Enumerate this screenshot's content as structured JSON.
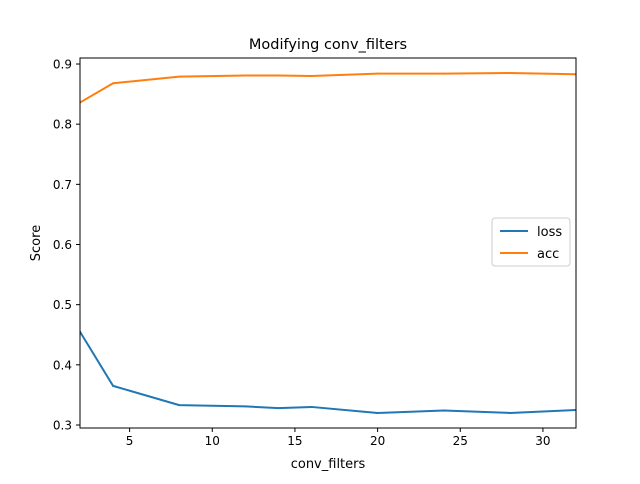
{
  "chart_data": {
    "type": "line",
    "title": "Modifying conv_filters",
    "xlabel": "conv_filters",
    "ylabel": "Score",
    "xlim": [
      2,
      32
    ],
    "ylim": [
      0.295,
      0.91
    ],
    "xticks": [
      5,
      10,
      15,
      20,
      25,
      30
    ],
    "yticks": [
      0.3,
      0.4,
      0.5,
      0.6,
      0.7,
      0.8,
      0.9
    ],
    "xtick_labels": [
      "5",
      "10",
      "15",
      "20",
      "25",
      "30"
    ],
    "ytick_labels": [
      "0.3",
      "0.4",
      "0.5",
      "0.6",
      "0.7",
      "0.8",
      "0.9"
    ],
    "grid": false,
    "legend_position": "center-right",
    "x": [
      2,
      4,
      8,
      12,
      14,
      16,
      20,
      24,
      28,
      32
    ],
    "series": [
      {
        "name": "loss",
        "color": "#1f77b4",
        "values": [
          0.455,
          0.365,
          0.333,
          0.331,
          0.328,
          0.33,
          0.32,
          0.324,
          0.32,
          0.325
        ]
      },
      {
        "name": "acc",
        "color": "#ff7f0e",
        "values": [
          0.836,
          0.868,
          0.879,
          0.881,
          0.881,
          0.88,
          0.884,
          0.884,
          0.885,
          0.883
        ]
      }
    ]
  }
}
